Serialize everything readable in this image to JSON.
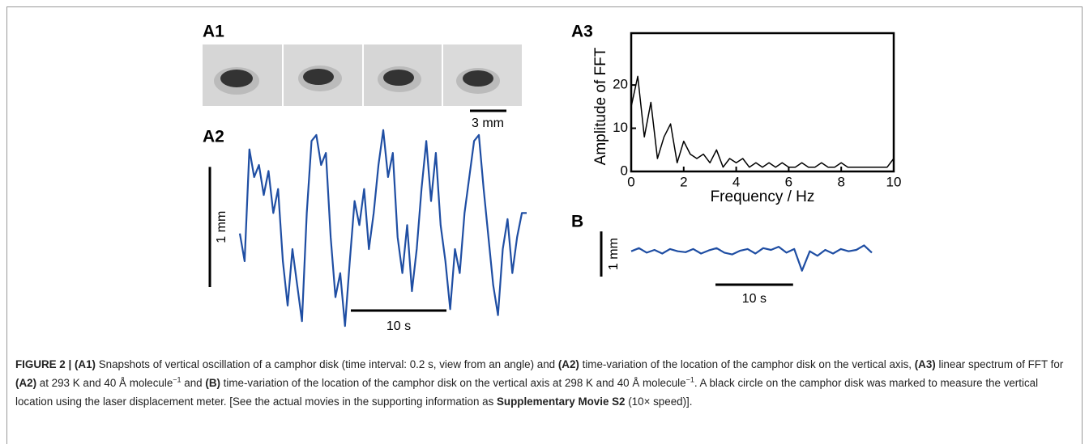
{
  "panel_labels": [
    "A1",
    "A2",
    "A3",
    "B"
  ],
  "snapshots": {
    "scale_bar_label": "3 mm"
  },
  "chart_data": [
    {
      "type": "line",
      "color": "#1f4ea3",
      "x": [
        0,
        0.5,
        1,
        1.5,
        2,
        2.5,
        3,
        3.5,
        4,
        4.5,
        5,
        5.5,
        6,
        6.5,
        7,
        7.5,
        8,
        8.5,
        9,
        9.5,
        10,
        10.5,
        11,
        11.5,
        12,
        12.5,
        13,
        13.5,
        14,
        14.5,
        15,
        15.5,
        16,
        16.5,
        17,
        17.5,
        18,
        18.5,
        19,
        19.5,
        20,
        20.5,
        21,
        21.5,
        22,
        22.5,
        23,
        23.5,
        24,
        24.5,
        25,
        25.5,
        26,
        26.5,
        27,
        27.5,
        28,
        28.5,
        29,
        29.5,
        30
      ],
      "values": [
        0.43,
        0.2,
        1.13,
        0.9,
        1.0,
        0.75,
        0.95,
        0.6,
        0.8,
        0.2,
        -0.17,
        0.3,
        0.0,
        -0.3,
        0.6,
        1.2,
        1.25,
        1.0,
        1.1,
        0.4,
        -0.1,
        0.1,
        -0.34,
        0.2,
        0.7,
        0.5,
        0.8,
        0.3,
        0.6,
        1.0,
        1.29,
        0.9,
        1.1,
        0.4,
        0.1,
        0.5,
        -0.05,
        0.3,
        0.8,
        1.2,
        0.7,
        1.1,
        0.5,
        0.2,
        -0.2,
        0.3,
        0.1,
        0.6,
        0.9,
        1.2,
        1.25,
        0.8,
        0.4,
        0.0,
        -0.25,
        0.3,
        0.55,
        0.1,
        0.4,
        0.6,
        0.6
      ],
      "xlim": [
        0,
        30
      ],
      "ylim": [
        -0.4,
        1.35
      ],
      "y_scale_bar": {
        "value": 1,
        "label": "1 mm"
      },
      "x_scale_bar": {
        "value": 10,
        "label": "10 s"
      }
    },
    {
      "type": "line",
      "color": "#000000",
      "x_label": "Frequency / Hz",
      "y_label": "Amplitude of FFT",
      "x": [
        0,
        0.25,
        0.5,
        0.75,
        1,
        1.25,
        1.5,
        1.75,
        2,
        2.25,
        2.5,
        2.75,
        3,
        3.25,
        3.5,
        3.75,
        4,
        4.25,
        4.5,
        4.75,
        5,
        5.25,
        5.5,
        5.75,
        6,
        6.25,
        6.5,
        6.75,
        7,
        7.25,
        7.5,
        7.75,
        8,
        8.25,
        8.5,
        8.75,
        9,
        9.25,
        9.5,
        9.75,
        10
      ],
      "values": [
        15,
        22,
        8,
        16,
        3,
        8,
        11,
        2,
        7,
        4,
        3,
        4,
        2,
        5,
        1,
        3,
        2,
        3,
        1,
        2,
        1,
        2,
        1,
        2,
        1,
        1,
        2,
        1,
        1,
        2,
        1,
        1,
        2,
        1,
        1,
        1,
        1,
        1,
        1,
        1,
        3
      ],
      "xlim": [
        0,
        10
      ],
      "ylim": [
        0,
        32
      ],
      "xticks": [
        0,
        2,
        4,
        6,
        8,
        10
      ],
      "yticks": [
        0,
        10,
        20
      ]
    },
    {
      "type": "line",
      "color": "#1f4ea3",
      "x": [
        0,
        1,
        2,
        3,
        4,
        5,
        6,
        7,
        8,
        9,
        10,
        11,
        12,
        13,
        14,
        15,
        16,
        17,
        18,
        19,
        20,
        21,
        22,
        23,
        24,
        25,
        26,
        27,
        28,
        29,
        30,
        31
      ],
      "values": [
        0.55,
        0.62,
        0.52,
        0.58,
        0.5,
        0.6,
        0.55,
        0.53,
        0.6,
        0.5,
        0.57,
        0.62,
        0.52,
        0.48,
        0.56,
        0.6,
        0.5,
        0.62,
        0.58,
        0.65,
        0.52,
        0.6,
        0.12,
        0.55,
        0.45,
        0.58,
        0.5,
        0.6,
        0.55,
        0.58,
        0.68,
        0.52
      ],
      "xlim": [
        0,
        31
      ],
      "ylim": [
        -0.1,
        1.1
      ],
      "y_scale_bar": {
        "value": 1,
        "label": "1 mm"
      },
      "x_scale_bar": {
        "value": 10,
        "label": "10 s"
      }
    }
  ],
  "caption": [
    "FIGURE 2 | (A1)",
    " Snapshots of vertical oscillation of a camphor disk (time interval: 0.2 s, view from an angle) and ",
    "(A2)",
    " time-variation of the location of the camphor disk on the vertical axis, ",
    "(A3)",
    " linear spectrum of FFT for ",
    "(A2)",
    " at 293 K and 40 Å molecule",
    "−1",
    " and ",
    "(B)",
    " time-variation of the location of the camphor disk on the vertical axis at 298 K and 40 Å molecule",
    "−1",
    ". A black circle on the camphor disk was marked to measure the vertical location using the laser displacement meter. [See the actual movies in the supporting information as ",
    "Supplementary Movie S2",
    " (10× speed)]."
  ]
}
